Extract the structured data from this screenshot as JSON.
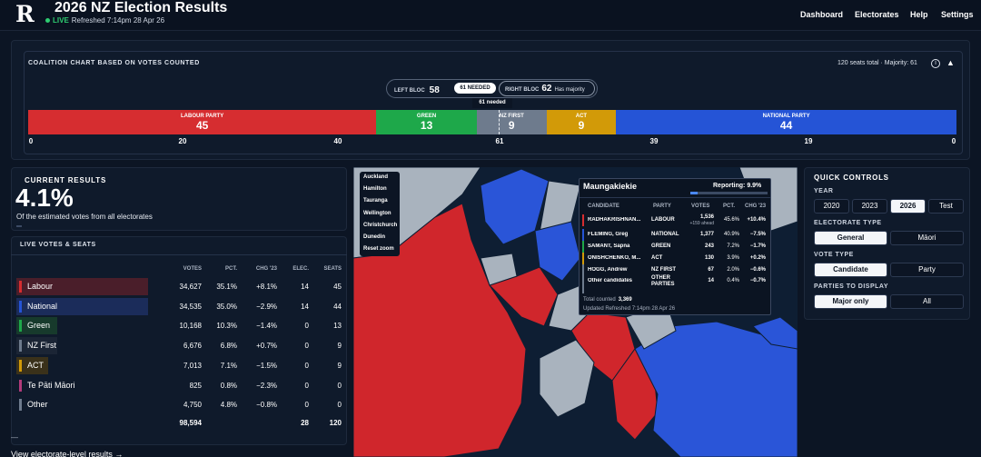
{
  "header": {
    "logo": "R",
    "title": "2026 NZ Election Results",
    "live": "LIVE",
    "refreshed": "Refreshed 7:14pm 28 Apr 26",
    "nav": [
      "Dashboard",
      "Electorates",
      "Help",
      "Settings"
    ]
  },
  "coalition": {
    "title": "COALITION CHART BASED ON VOTES COUNTED",
    "seat_info": "120 seats total · Majority: 61",
    "left_bloc_label": "LEFT BLOC",
    "left_bloc_seats": "58",
    "needed_pill": "61 NEEDED",
    "right_bloc_label": "RIGHT BLOC",
    "right_bloc_seats": "62",
    "majority_note": "Has majority",
    "needed_line": "61 needed",
    "segments": [
      {
        "party": "LABOUR PARTY",
        "seats": "45",
        "color": "#d62d30"
      },
      {
        "party": "GREEN",
        "seats": "13",
        "color": "#1ea84a"
      },
      {
        "party": "NZ FIRST",
        "seats": "9",
        "color": "#6e7b8d"
      },
      {
        "party": "ACT",
        "seats": "9",
        "color": "#d29a08"
      },
      {
        "party": "NATIONAL PARTY",
        "seats": "44",
        "color": "#2554d6"
      }
    ],
    "ticks": [
      "0",
      "20",
      "40",
      "61",
      "39",
      "19",
      "0"
    ]
  },
  "current": {
    "title": "CURRENT RESULTS",
    "value": "4.1%",
    "subtitle": "Of the estimated votes from all electorates"
  },
  "live_votes": {
    "title": "LIVE VOTES & SEATS",
    "columns": [
      "VOTES",
      "PCT.",
      "CHG '23",
      "ELEC.",
      "SEATS"
    ],
    "rows": [
      {
        "party": "Labour",
        "votes": "34,627",
        "pct": "35.1%",
        "chg": "+8.1%",
        "elec": "14",
        "seats": "45",
        "color": "#d62d30",
        "hl": "#4a1e2a"
      },
      {
        "party": "National",
        "votes": "34,535",
        "pct": "35.0%",
        "chg": "−2.9%",
        "elec": "14",
        "seats": "44",
        "color": "#2554d6",
        "hl": "#1b2c5a"
      },
      {
        "party": "Green",
        "votes": "10,168",
        "pct": "10.3%",
        "chg": "−1.4%",
        "elec": "0",
        "seats": "13",
        "color": "#1ea84a",
        "hl": "#173a2c"
      },
      {
        "party": "NZ First",
        "votes": "6,676",
        "pct": "6.8%",
        "chg": "+0.7%",
        "elec": "0",
        "seats": "9",
        "color": "#6e7b8d",
        "hl": "#1b2535"
      },
      {
        "party": "ACT",
        "votes": "7,013",
        "pct": "7.1%",
        "chg": "−1.5%",
        "elec": "0",
        "seats": "9",
        "color": "#d29a08",
        "hl": "#3a311a"
      },
      {
        "party": "Te Pāti Māori",
        "votes": "825",
        "pct": "0.8%",
        "chg": "−2.3%",
        "elec": "0",
        "seats": "0",
        "color": "#b23a7a",
        "hl": ""
      },
      {
        "party": "Other",
        "votes": "4,750",
        "pct": "4.8%",
        "chg": "−0.8%",
        "elec": "0",
        "seats": "0",
        "color": "#6e7b8d",
        "hl": ""
      }
    ],
    "totals": {
      "votes": "98,594",
      "elec": "28",
      "seats": "120"
    },
    "minus": "—",
    "view_link": "View electorate-level results →"
  },
  "map": {
    "buttons": [
      "Auckland",
      "Hamilton",
      "Tauranga",
      "Wellington",
      "Christchurch",
      "Dunedin",
      "Reset zoom"
    ]
  },
  "tooltip": {
    "title": "Maungakiekie",
    "reporting": "Reporting: 9.9%",
    "reporting_fraction": 0.099,
    "columns": [
      "CANDIDATE",
      "PARTY",
      "VOTES",
      "PCT.",
      "CHG '23"
    ],
    "rows": [
      {
        "name": "RADHAKRISHNAN...",
        "party": "LABOUR",
        "votes": "1,536",
        "ahead": "+159 ahead",
        "pct": "45.6%",
        "chg": "+10.4%",
        "color": "#d62d30"
      },
      {
        "name": "FLEMING, Greg",
        "party": "NATIONAL",
        "votes": "1,377",
        "ahead": "",
        "pct": "40.9%",
        "chg": "−7.5%",
        "color": "#2554d6"
      },
      {
        "name": "SAMANT, Sapna",
        "party": "GREEN",
        "votes": "243",
        "ahead": "",
        "pct": "7.2%",
        "chg": "−1.7%",
        "color": "#1ea84a"
      },
      {
        "name": "ONISHCHENKO, M...",
        "party": "ACT",
        "votes": "130",
        "ahead": "",
        "pct": "3.9%",
        "chg": "+0.2%",
        "color": "#d29a08"
      },
      {
        "name": "HOGG, Andrew",
        "party": "NZ FIRST",
        "votes": "67",
        "ahead": "",
        "pct": "2.0%",
        "chg": "−0.6%",
        "color": "#6e7b8d"
      },
      {
        "name": "Other candidates",
        "party": "OTHER PARTIES",
        "votes": "14",
        "ahead": "",
        "pct": "0.4%",
        "chg": "−0.7%",
        "color": "#6e7b8d"
      }
    ],
    "total_label": "Total counted",
    "total": "3,369",
    "updated": "Updated Refreshed 7:14pm 28 Apr 26"
  },
  "quick": {
    "title": "QUICK CONTROLS",
    "year_label": "YEAR",
    "years": [
      "2020",
      "2023",
      "2026",
      "Test"
    ],
    "elect_label": "ELECTORATE TYPE",
    "elect": [
      "General",
      "Māori"
    ],
    "vote_label": "VOTE TYPE",
    "vote": [
      "Candidate",
      "Party"
    ],
    "parties_label": "PARTIES TO DISPLAY",
    "parties": [
      "Major only",
      "All"
    ]
  },
  "colors": {
    "background": "#0c1524",
    "panel": "#0f1a2b",
    "live": "#2ecc71"
  }
}
